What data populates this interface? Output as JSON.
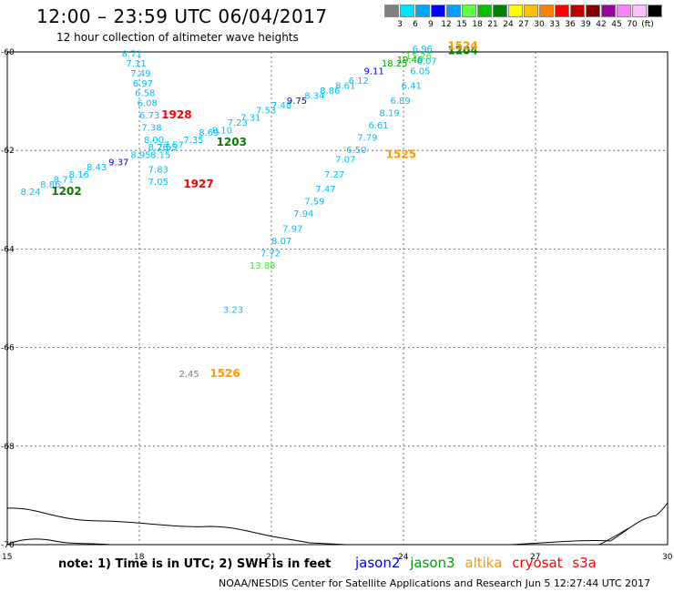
{
  "header": {
    "title": "12:00 – 23:59 UTC 06/04/2017",
    "subtitle": "12 hour collection of altimeter wave heights"
  },
  "legend": {
    "colors": [
      "#808080",
      "#00e5ff",
      "#00a8ff",
      "#0000ff",
      "#00a0ff",
      "#60ff40",
      "#00c000",
      "#008000",
      "#ffff00",
      "#ffc000",
      "#ff8000",
      "#ff0000",
      "#c00000",
      "#800000",
      "#a000a0",
      "#ff80ff",
      "#ffc0ff",
      "#000000"
    ],
    "labels": [
      "3",
      "6",
      "9",
      "12",
      "15",
      "18",
      "21",
      "24",
      "27",
      "30",
      "33",
      "36",
      "39",
      "42",
      "45",
      "70",
      "(ft)"
    ]
  },
  "map": {
    "lat_labels": [
      {
        "value": "-60",
        "lat": -60
      },
      {
        "value": "-62",
        "lat": -62
      },
      {
        "value": "-64",
        "lat": -64
      },
      {
        "value": "-66",
        "lat": -66
      },
      {
        "value": "-68",
        "lat": -68
      },
      {
        "value": "-70",
        "lat": -70
      }
    ],
    "lon_labels": [
      {
        "value": "15",
        "lon": 15
      },
      {
        "value": "18",
        "lon": 18
      },
      {
        "value": "21",
        "lon": 21
      },
      {
        "value": "24",
        "lon": 24
      },
      {
        "value": "27",
        "lon": 27
      },
      {
        "value": "30",
        "lon": 30
      }
    ],
    "wave_heights": [
      {
        "v": "8.71",
        "lon": 17.6,
        "lat": -60.1,
        "c": "#00bfff"
      },
      {
        "v": "7.11",
        "lon": 17.7,
        "lat": -60.3,
        "c": "#00bfff"
      },
      {
        "v": "7.49",
        "lon": 17.8,
        "lat": -60.5,
        "c": "#00bfff"
      },
      {
        "v": "6.97",
        "lon": 17.85,
        "lat": -60.7,
        "c": "#00bfff"
      },
      {
        "v": "6.58",
        "lon": 17.9,
        "lat": -60.9,
        "c": "#00bfff"
      },
      {
        "v": "6.08",
        "lon": 17.95,
        "lat": -61.1,
        "c": "#00bfff"
      },
      {
        "v": "6.73",
        "lon": 18.0,
        "lat": -61.35,
        "c": "#00bfff"
      },
      {
        "v": "7.38",
        "lon": 18.05,
        "lat": -61.6,
        "c": "#00bfff"
      },
      {
        "v": "8.00",
        "lon": 18.1,
        "lat": -61.85,
        "c": "#00bfff"
      },
      {
        "v": "8.26",
        "lon": 18.2,
        "lat": -62.0,
        "c": "#00bfff"
      },
      {
        "v": "8.15",
        "lon": 18.25,
        "lat": -62.15,
        "c": "#00bfff"
      },
      {
        "v": "7.83",
        "lon": 18.2,
        "lat": -62.45,
        "c": "#00bfff"
      },
      {
        "v": "7.05",
        "lon": 18.2,
        "lat": -62.7,
        "c": "#00bfff"
      },
      {
        "v": "7.55",
        "lon": 18.4,
        "lat": -62.0,
        "c": "#00bfff"
      },
      {
        "v": "7.57",
        "lon": 18.55,
        "lat": -61.95,
        "c": "#00bfff"
      },
      {
        "v": "7.35",
        "lon": 19.0,
        "lat": -61.85,
        "c": "#00bfff"
      },
      {
        "v": "8.69",
        "lon": 19.35,
        "lat": -61.7,
        "c": "#00bfff"
      },
      {
        "v": "8.10",
        "lon": 19.65,
        "lat": -61.65,
        "c": "#00bfff"
      },
      {
        "v": "7.23",
        "lon": 20.0,
        "lat": -61.5,
        "c": "#00bfff"
      },
      {
        "v": "7.31",
        "lon": 20.3,
        "lat": -61.4,
        "c": "#00bfff"
      },
      {
        "v": "7.53",
        "lon": 20.65,
        "lat": -61.25,
        "c": "#00bfff"
      },
      {
        "v": "7.48",
        "lon": 21.0,
        "lat": -61.15,
        "c": "#00bfff"
      },
      {
        "v": "9.75",
        "lon": 21.35,
        "lat": -61.05,
        "c": "#0000ff"
      },
      {
        "v": "8.34",
        "lon": 21.75,
        "lat": -60.95,
        "c": "#00bfff"
      },
      {
        "v": "8.86",
        "lon": 22.1,
        "lat": -60.85,
        "c": "#00bfff"
      },
      {
        "v": "8.61",
        "lon": 22.45,
        "lat": -60.75,
        "c": "#00bfff"
      },
      {
        "v": "6.12",
        "lon": 22.75,
        "lat": -60.65,
        "c": "#00bfff"
      },
      {
        "v": "9.11",
        "lon": 23.1,
        "lat": -60.45,
        "c": "#0000ff"
      },
      {
        "v": "18.25",
        "lon": 23.5,
        "lat": -60.3,
        "c": "#00a000"
      },
      {
        "v": "19.46",
        "lon": 23.85,
        "lat": -60.22,
        "c": "#00a000"
      },
      {
        "v": "15.26",
        "lon": 24.05,
        "lat": -60.15,
        "c": "#40e040"
      },
      {
        "v": "6.96",
        "lon": 24.2,
        "lat": -60.0,
        "c": "#00bfff"
      },
      {
        "v": "6.07",
        "lon": 24.3,
        "lat": -60.25,
        "c": "#00bfff"
      },
      {
        "v": "6.05",
        "lon": 24.15,
        "lat": -60.45,
        "c": "#00bfff"
      },
      {
        "v": "6.41",
        "lon": 23.95,
        "lat": -60.75,
        "c": "#00bfff"
      },
      {
        "v": "6.89",
        "lon": 23.7,
        "lat": -61.05,
        "c": "#00bfff"
      },
      {
        "v": "8.19",
        "lon": 23.45,
        "lat": -61.3,
        "c": "#00bfff"
      },
      {
        "v": "6.61",
        "lon": 23.2,
        "lat": -61.55,
        "c": "#00bfff"
      },
      {
        "v": "7.79",
        "lon": 22.95,
        "lat": -61.8,
        "c": "#00bfff"
      },
      {
        "v": "6.50",
        "lon": 22.7,
        "lat": -62.05,
        "c": "#00bfff"
      },
      {
        "v": "7.07",
        "lon": 22.45,
        "lat": -62.25,
        "c": "#00bfff"
      },
      {
        "v": "7.27",
        "lon": 22.2,
        "lat": -62.55,
        "c": "#00bfff"
      },
      {
        "v": "7.47",
        "lon": 22.0,
        "lat": -62.85,
        "c": "#00bfff"
      },
      {
        "v": "7.59",
        "lon": 21.75,
        "lat": -63.1,
        "c": "#00bfff"
      },
      {
        "v": "7.94",
        "lon": 21.5,
        "lat": -63.35,
        "c": "#00bfff"
      },
      {
        "v": "7.97",
        "lon": 21.25,
        "lat": -63.65,
        "c": "#00bfff"
      },
      {
        "v": "8.07",
        "lon": 21.0,
        "lat": -63.9,
        "c": "#00bfff"
      },
      {
        "v": "7.72",
        "lon": 20.75,
        "lat": -64.15,
        "c": "#00bfff"
      },
      {
        "v": "13.88",
        "lon": 20.5,
        "lat": -64.4,
        "c": "#40e040"
      },
      {
        "v": "3.23",
        "lon": 19.9,
        "lat": -65.3,
        "c": "#00bfff"
      },
      {
        "v": "2.45",
        "lon": 18.9,
        "lat": -66.6,
        "c": "#808080"
      },
      {
        "v": "8.24",
        "lon": 15.3,
        "lat": -62.9,
        "c": "#00bfff"
      },
      {
        "v": "8.86",
        "lon": 15.75,
        "lat": -62.75,
        "c": "#00bfff"
      },
      {
        "v": "8.71",
        "lon": 16.05,
        "lat": -62.65,
        "c": "#00bfff"
      },
      {
        "v": "8.16",
        "lon": 16.4,
        "lat": -62.55,
        "c": "#00bfff"
      },
      {
        "v": "8.43",
        "lon": 16.8,
        "lat": -62.4,
        "c": "#00bfff"
      },
      {
        "v": "9.37",
        "lon": 17.3,
        "lat": -62.3,
        "c": "#0000ff"
      },
      {
        "v": "8.95",
        "lon": 17.8,
        "lat": -62.15,
        "c": "#00bfff"
      }
    ],
    "times": [
      {
        "v": "1928",
        "lon": 18.5,
        "lat": -61.35,
        "c": "#ff0000"
      },
      {
        "v": "1927",
        "lon": 19.0,
        "lat": -62.75,
        "c": "#ff0000"
      },
      {
        "v": "1203",
        "lon": 19.75,
        "lat": -61.9,
        "c": "#008000"
      },
      {
        "v": "1202",
        "lon": 16.0,
        "lat": -62.9,
        "c": "#008000"
      },
      {
        "v": "1204",
        "lon": 25.0,
        "lat": -60.05,
        "c": "#008000"
      },
      {
        "v": "1524",
        "lon": 25.0,
        "lat": -59.95,
        "c": "#ff9900"
      },
      {
        "v": "1525",
        "lon": 23.6,
        "lat": -62.15,
        "c": "#ff9900"
      },
      {
        "v": "1526",
        "lon": 19.6,
        "lat": -66.6,
        "c": "#ff9900"
      }
    ]
  },
  "footer": {
    "note": "note: 1) Time is in UTC; 2) SWH is in feet",
    "sat_jason2": "jason2",
    "sat_jason3": "jason3",
    "sat_altika": "altika",
    "sat_cryosat": "cryosat",
    "sat_s3a": "s3a",
    "credit": "NOAA/NESDIS Center for Satellite Applications and Research   Jun  5 12:27:44 UTC 2017"
  }
}
